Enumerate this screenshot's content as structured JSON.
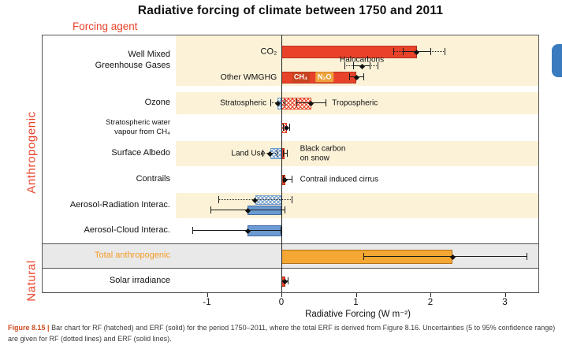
{
  "page": {
    "title": "Radiative forcing of climate between 1750 and 2011",
    "column_header": "Forcing agent",
    "side_labels": {
      "anthropogenic": "Anthropogenic",
      "natural": "Natural"
    },
    "caption": {
      "lead": "Figure 8.15 |",
      "body": "Bar chart for RF (hatched) and ERF (solid) for the period 1750–2011, where the total ERF is derived from Figure 8.16. Uncertainties (5 to 95% confidence range) are given for RF (dotted lines) and ERF (solid lines)."
    }
  },
  "colors": {
    "bar_red": "#e8432a",
    "bar_blue": "#6b9bd2",
    "bar_orange": "#f5a733",
    "chip_ch4": "#c8431f",
    "chip_n2o": "#eda33b",
    "band_cream": "#fbf2d8",
    "band_gray": "#e9e9e9",
    "total_label_orange": "#f59a23",
    "caption_lead": "#cf4b20",
    "blue_tab": "#3a7bbf",
    "whisker": "#1a1a1a"
  },
  "chart_data": {
    "type": "bar",
    "title": "Radiative forcing of climate between 1750 and 2011",
    "xlabel": "Radiative Forcing (W m⁻²)",
    "units": "W m⁻²",
    "xlim": [
      -1.42,
      3.47
    ],
    "x_ticks": [
      -1,
      0,
      1,
      2,
      3
    ],
    "legend_note": "hatched bars = RF, solid bars = ERF; dotted whiskers = RF uncertainty, solid whiskers = ERF uncertainty (5 to 95% confidence range)",
    "estimates": [
      {
        "agent": "CO₂",
        "erf": 1.82,
        "range": [
          1.63,
          2.01
        ]
      },
      {
        "agent": "Other WMGHG (CH₄, N₂O, Halocarbons)",
        "erf": 1.01,
        "range": [
          0.91,
          1.11
        ]
      },
      {
        "agent": "Stratospheric ozone",
        "rf": -0.05,
        "range": [
          -0.15,
          0.05
        ]
      },
      {
        "agent": "Tropospheric ozone",
        "rf": 0.4,
        "range": [
          0.2,
          0.6
        ]
      },
      {
        "agent": "Stratospheric water vapour from CH₄",
        "rf": 0.07,
        "range": [
          0.02,
          0.12
        ]
      },
      {
        "agent": "Land Use",
        "rf": -0.15,
        "range": [
          -0.25,
          -0.05
        ]
      },
      {
        "agent": "Black carbon on snow",
        "rf": 0.04,
        "range": [
          0.02,
          0.09
        ]
      },
      {
        "agent": "Contrail induced cirrus",
        "erf": 0.05,
        "range": [
          0.02,
          0.15
        ]
      },
      {
        "agent": "Aerosol-Radiation Interac.",
        "erf": -0.45,
        "range": [
          -0.95,
          0.05
        ]
      },
      {
        "agent": "Aerosol-Cloud Interac.",
        "erf": -0.45,
        "range": [
          -1.2,
          0.0
        ]
      },
      {
        "agent": "Total anthropogenic",
        "erf": 2.3,
        "range": [
          1.1,
          3.3
        ]
      },
      {
        "agent": "Solar irradiance",
        "rf": 0.05,
        "range": [
          0.0,
          0.1
        ]
      }
    ],
    "rows": [
      {
        "id": "wmgg",
        "label": "Well Mixed\nGreenhouse Gases",
        "band": "cream",
        "height": 64,
        "items": [
          {
            "type": "text",
            "name": "co2-label",
            "text": "CO₂",
            "v": -0.06,
            "align": "right",
            "cy": 21,
            "size": 11
          },
          {
            "type": "bar",
            "name": "co2-erf-bar",
            "v0": 0,
            "v1": 1.82,
            "cy": 21,
            "h": 16,
            "color": "red",
            "fill": "solid"
          },
          {
            "type": "whisker",
            "name": "co2-rf-whisker",
            "lo": 1.5,
            "hi": 2.2,
            "cy": 21,
            "style": "dotted"
          },
          {
            "type": "whisker",
            "name": "co2-erf-whisker",
            "lo": 1.63,
            "hi": 2.01,
            "cy": 21,
            "style": "solid"
          },
          {
            "type": "marker",
            "name": "co2-marker",
            "v": 1.82,
            "cy": 21
          },
          {
            "type": "text",
            "name": "halocarbons-label",
            "text": "Halocarbons",
            "v": 1.08,
            "align": "center",
            "cy": 31,
            "size": 10
          },
          {
            "type": "whisker",
            "name": "halocarbons-rf-whisker",
            "lo": 0.85,
            "hi": 1.3,
            "cy": 39,
            "style": "dotted"
          },
          {
            "type": "whisker",
            "name": "halocarbons-erf-whisker",
            "lo": 0.96,
            "hi": 1.2,
            "cy": 39,
            "style": "solid"
          },
          {
            "type": "marker",
            "name": "halocarbons-marker",
            "v": 1.08,
            "cy": 39
          },
          {
            "type": "text",
            "name": "other-wmghg-label",
            "text": "Other WMGHG",
            "v": -0.06,
            "align": "right",
            "cy": 53,
            "size": 10.5
          },
          {
            "type": "bar",
            "name": "other-wmghg-erf-bar",
            "v0": 0,
            "v1": 1.01,
            "cy": 53,
            "h": 15,
            "color": "red",
            "fill": "solid"
          },
          {
            "type": "chip",
            "name": "ch4-chip",
            "v": 0.26,
            "text": "CH₄",
            "bg": "chip_ch4",
            "cy": 53
          },
          {
            "type": "chip",
            "name": "n2o-chip",
            "v": 0.58,
            "text": "N₂O",
            "bg": "chip_n2o",
            "cy": 53
          },
          {
            "type": "whisker",
            "name": "other-wmghg-erf-whisker",
            "lo": 0.91,
            "hi": 1.11,
            "cy": 53,
            "style": "solid"
          },
          {
            "type": "marker",
            "name": "other-wmghg-marker",
            "v": 1.01,
            "cy": 53
          }
        ]
      },
      {
        "id": "wmgg-gap",
        "label": "",
        "band": "white",
        "height": 8,
        "items": []
      },
      {
        "id": "ozone",
        "label": "Ozone",
        "band": "cream",
        "height": 28,
        "items": [
          {
            "type": "text",
            "name": "stratospheric-label",
            "text": "Stratospheric",
            "v": -0.2,
            "align": "right",
            "cy": 14,
            "size": 10
          },
          {
            "type": "bar",
            "name": "strat-ozone-rf-bar",
            "v0": -0.05,
            "v1": 0,
            "cy": 14,
            "h": 15,
            "color": "blue",
            "fill": "hatch"
          },
          {
            "type": "bar",
            "name": "trop-ozone-rf-bar",
            "v0": 0,
            "v1": 0.4,
            "cy": 14,
            "h": 15,
            "color": "red",
            "fill": "hatch"
          },
          {
            "type": "whisker",
            "name": "strat-ozone-whisker",
            "lo": -0.15,
            "hi": 0.05,
            "cy": 14,
            "style": "dotted"
          },
          {
            "type": "marker",
            "name": "strat-ozone-marker",
            "v": -0.05,
            "cy": 14
          },
          {
            "type": "whisker",
            "name": "trop-ozone-whisker",
            "lo": 0.2,
            "hi": 0.6,
            "cy": 14,
            "style": "solid"
          },
          {
            "type": "marker",
            "name": "trop-ozone-marker",
            "v": 0.4,
            "cy": 14
          },
          {
            "type": "text",
            "name": "tropospheric-label",
            "text": "Tropospheric",
            "v": 0.68,
            "align": "left",
            "cy": 14,
            "size": 10
          }
        ]
      },
      {
        "id": "strat-water-vapour",
        "label": "Stratospheric water\nvapour from CH₄",
        "band": "white",
        "height": 34,
        "label_size": 9.5,
        "items": [
          {
            "type": "bar",
            "name": "swv-rf-bar",
            "v0": 0,
            "v1": 0.07,
            "cy": 17,
            "h": 13,
            "color": "red",
            "fill": "hatch"
          },
          {
            "type": "whisker",
            "name": "swv-whisker",
            "lo": 0.02,
            "hi": 0.12,
            "cy": 17,
            "style": "dotted"
          },
          {
            "type": "marker",
            "name": "swv-marker",
            "v": 0.07,
            "cy": 17
          }
        ]
      },
      {
        "id": "surface-albedo",
        "label": "Surface Albedo",
        "band": "cream",
        "height": 32,
        "items": [
          {
            "type": "text",
            "name": "land-use-label",
            "text": "Land Use",
            "v": -0.22,
            "align": "right",
            "cy": 16,
            "size": 10
          },
          {
            "type": "bar",
            "name": "land-use-rf-bar",
            "v0": -0.15,
            "v1": 0,
            "cy": 16,
            "h": 14,
            "color": "blue",
            "fill": "hatch"
          },
          {
            "type": "whisker",
            "name": "land-use-whisker",
            "lo": -0.25,
            "hi": -0.05,
            "cy": 16,
            "style": "dotted"
          },
          {
            "type": "marker",
            "name": "land-use-marker",
            "v": -0.15,
            "cy": 16
          },
          {
            "type": "bar",
            "name": "bc-snow-bar",
            "v0": 0,
            "v1": 0.04,
            "cy": 16,
            "h": 14,
            "color": "red",
            "fill": "solid"
          },
          {
            "type": "whisker",
            "name": "bc-snow-whisker",
            "lo": 0.02,
            "hi": 0.09,
            "cy": 16,
            "style": "solid"
          },
          {
            "type": "text",
            "name": "black-carbon-label",
            "text": "Black carbon\non snow",
            "v": 0.25,
            "align": "left",
            "cy": 16,
            "size": 10
          }
        ]
      },
      {
        "id": "contrails",
        "label": "Contrails",
        "band": "white",
        "height": 34,
        "items": [
          {
            "type": "bar",
            "name": "contrails-erf-bar",
            "v0": 0,
            "v1": 0.05,
            "cy": 17,
            "h": 13,
            "color": "red",
            "fill": "solid"
          },
          {
            "type": "whisker",
            "name": "contrails-whisker",
            "lo": 0.02,
            "hi": 0.15,
            "cy": 17,
            "style": "solid"
          },
          {
            "type": "marker",
            "name": "contrails-marker",
            "v": 0.05,
            "cy": 17
          },
          {
            "type": "text",
            "name": "contrail-cirrus-label",
            "text": "Contrail induced cirrus",
            "v": 0.25,
            "align": "left",
            "cy": 17,
            "size": 10
          }
        ]
      },
      {
        "id": "aerosol-radiation",
        "label": "Aerosol-Radiation Interac.",
        "band": "cream",
        "height": 32,
        "items": [
          {
            "type": "bar",
            "name": "ari-rf-bar",
            "v0": -0.35,
            "v1": 0,
            "cy": 9,
            "h": 12,
            "color": "blue",
            "fill": "hatch"
          },
          {
            "type": "whisker",
            "name": "ari-rf-whisker",
            "lo": -0.85,
            "hi": 0.15,
            "cy": 9,
            "style": "dotted"
          },
          {
            "type": "marker",
            "name": "ari-rf-marker",
            "v": -0.35,
            "cy": 9
          },
          {
            "type": "bar",
            "name": "ari-erf-bar",
            "v0": -0.45,
            "v1": 0,
            "cy": 22,
            "h": 12,
            "color": "blue",
            "fill": "solid"
          },
          {
            "type": "whisker",
            "name": "ari-erf-whisker",
            "lo": -0.95,
            "hi": 0.05,
            "cy": 22,
            "style": "solid"
          },
          {
            "type": "marker",
            "name": "ari-erf-marker",
            "v": -0.45,
            "cy": 22
          }
        ]
      },
      {
        "id": "aerosol-cloud",
        "label": "Aerosol-Cloud Interac.",
        "band": "white",
        "height": 32,
        "items": [
          {
            "type": "bar",
            "name": "aci-erf-bar",
            "v0": -0.45,
            "v1": 0,
            "cy": 16,
            "h": 14,
            "color": "blue",
            "fill": "solid"
          },
          {
            "type": "whisker",
            "name": "aci-erf-whisker",
            "lo": -1.2,
            "hi": 0.0,
            "cy": 16,
            "style": "solid"
          },
          {
            "type": "marker",
            "name": "aci-marker",
            "v": -0.45,
            "cy": 16
          }
        ]
      },
      {
        "id": "total-anthropogenic",
        "label": "Total anthropogenic",
        "band": "gray",
        "height": 32,
        "label_color": "#f59a23",
        "items": [
          {
            "type": "bar",
            "name": "total-erf-bar",
            "v0": 0,
            "v1": 2.3,
            "cy": 16,
            "h": 18,
            "color": "orange",
            "fill": "solid"
          },
          {
            "type": "whisker",
            "name": "total-whisker",
            "lo": 1.1,
            "hi": 3.3,
            "cy": 16,
            "style": "solid"
          },
          {
            "type": "marker",
            "name": "total-marker",
            "v": 2.3,
            "cy": 16
          }
        ]
      },
      {
        "id": "solar-irradiance",
        "label": "Solar irradiance",
        "band": "white",
        "height": 32,
        "items": [
          {
            "type": "bar",
            "name": "solar-rf-bar",
            "v0": 0,
            "v1": 0.05,
            "cy": 16,
            "h": 13,
            "color": "red",
            "fill": "solid"
          },
          {
            "type": "whisker",
            "name": "solar-whisker",
            "lo": 0.0,
            "hi": 0.1,
            "cy": 16,
            "style": "solid"
          },
          {
            "type": "marker",
            "name": "solar-marker",
            "v": 0.05,
            "cy": 16
          }
        ]
      }
    ]
  }
}
